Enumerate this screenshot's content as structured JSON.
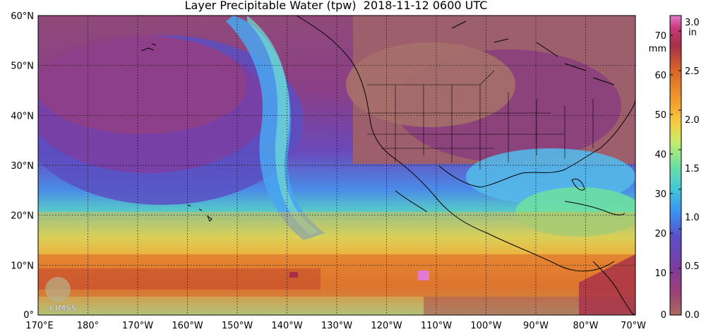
{
  "title": "Layer Precipitable Water (tpw)  2018-11-12 0600 UTC",
  "map": {
    "lat_labels": [
      "60°N",
      "50°N",
      "40°N",
      "30°N",
      "20°N",
      "10°N",
      "0°"
    ],
    "lon_labels": [
      "170°E",
      "180°",
      "170°W",
      "160°W",
      "150°W",
      "140°W",
      "130°W",
      "120°W",
      "110°W",
      "100°W",
      "90°W",
      "80°W",
      "70°W"
    ],
    "lat_range": [
      0,
      60
    ],
    "lon_range": [
      "170°E",
      "70°W"
    ],
    "grid": true,
    "watermark": "CIMSS"
  },
  "colorbar": {
    "mm_unit": "mm",
    "in_unit": "in",
    "mm_ticks": [
      "70",
      "60",
      "50",
      "40",
      "30",
      "20",
      "10",
      "0"
    ],
    "in_ticks": [
      "3.0",
      "2.5",
      "2.0",
      "1.5",
      "1.0",
      "0.5",
      "0.0"
    ],
    "stops": [
      "#a96b5f",
      "#9b3f78",
      "#7a3c9c",
      "#5b4fc9",
      "#3a8ff0",
      "#42c6d8",
      "#6ee0a0",
      "#c8ec6c",
      "#f6cc42",
      "#f09a2c",
      "#d8622a",
      "#a6304a",
      "#c83c7a",
      "#e27ad0"
    ]
  }
}
